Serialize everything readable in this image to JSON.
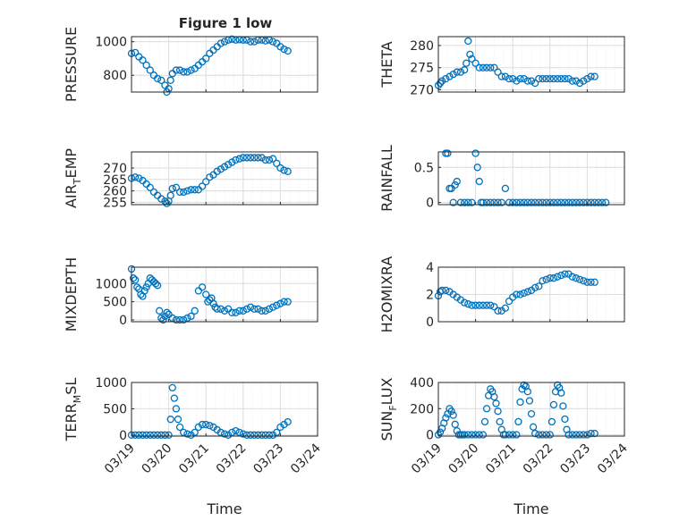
{
  "title": "Figure 1 low",
  "colors": {
    "series": "#0072bd",
    "axis": "#262626",
    "grid": "#dcdcdc"
  },
  "chart_data": [
    {
      "type": "scatter",
      "title": "Figure 1 low",
      "ylabel": "PRESSURE",
      "ylabel_sub": "",
      "ylim": [
        700,
        1030
      ],
      "yticks": [
        800,
        1000
      ],
      "xlim": [
        0,
        5
      ],
      "x": [
        0.0,
        0.1,
        0.2,
        0.3,
        0.4,
        0.5,
        0.6,
        0.7,
        0.8,
        0.9,
        0.95,
        1.0,
        1.05,
        1.1,
        1.2,
        1.3,
        1.4,
        1.5,
        1.6,
        1.7,
        1.8,
        1.9,
        2.0,
        2.1,
        2.2,
        2.3,
        2.4,
        2.5,
        2.6,
        2.7,
        2.8,
        2.9,
        3.0,
        3.1,
        3.2,
        3.3,
        3.4,
        3.5,
        3.6,
        3.7,
        3.8,
        3.9,
        4.0,
        4.1,
        4.2
      ],
      "y": [
        930,
        935,
        910,
        890,
        860,
        830,
        800,
        780,
        770,
        740,
        700,
        720,
        770,
        810,
        830,
        830,
        820,
        820,
        830,
        840,
        860,
        880,
        900,
        930,
        950,
        970,
        990,
        1000,
        1010,
        1015,
        1010,
        1012,
        1010,
        1010,
        1000,
        1000,
        1010,
        1010,
        1005,
        1010,
        1000,
        990,
        970,
        955,
        945
      ]
    },
    {
      "type": "scatter",
      "ylabel": "THETA",
      "ylabel_sub": "",
      "ylim": [
        269.5,
        282
      ],
      "yticks": [
        270,
        275,
        280
      ],
      "xlim": [
        0,
        5
      ],
      "x": [
        0.0,
        0.05,
        0.1,
        0.2,
        0.3,
        0.4,
        0.5,
        0.6,
        0.7,
        0.75,
        0.8,
        0.85,
        0.9,
        1.0,
        1.1,
        1.2,
        1.3,
        1.4,
        1.5,
        1.6,
        1.7,
        1.8,
        1.9,
        2.0,
        2.1,
        2.2,
        2.3,
        2.4,
        2.5,
        2.6,
        2.7,
        2.8,
        2.9,
        3.0,
        3.1,
        3.2,
        3.3,
        3.4,
        3.5,
        3.6,
        3.7,
        3.8,
        3.9,
        4.0,
        4.1,
        4.2
      ],
      "y": [
        271,
        271.5,
        272,
        272.5,
        273,
        273.5,
        274,
        274,
        274.5,
        276,
        281,
        278,
        277,
        276,
        275,
        275,
        275,
        275,
        275,
        274,
        273,
        273,
        272.5,
        272.5,
        272,
        272.5,
        272.5,
        272,
        272,
        271.5,
        272.5,
        272.5,
        272.5,
        272.5,
        272.5,
        272.5,
        272.5,
        272.5,
        272.5,
        272,
        272,
        271.5,
        272,
        272.5,
        273,
        273
      ]
    },
    {
      "type": "scatter",
      "ylabel": "AIR",
      "ylabel_sub": "T",
      "ylabel_suffix": "EMP",
      "ylim": [
        254,
        277
      ],
      "yticks": [
        255,
        260,
        265,
        270
      ],
      "xlim": [
        0,
        5
      ],
      "x": [
        0.0,
        0.1,
        0.2,
        0.3,
        0.4,
        0.5,
        0.6,
        0.7,
        0.8,
        0.9,
        0.95,
        1.0,
        1.05,
        1.1,
        1.2,
        1.3,
        1.4,
        1.5,
        1.6,
        1.7,
        1.8,
        1.9,
        2.0,
        2.1,
        2.2,
        2.3,
        2.4,
        2.5,
        2.6,
        2.7,
        2.8,
        2.9,
        3.0,
        3.1,
        3.2,
        3.3,
        3.4,
        3.5,
        3.6,
        3.7,
        3.8,
        3.9,
        4.0,
        4.1,
        4.2
      ],
      "y": [
        265.5,
        266,
        265.5,
        264.5,
        263,
        261.5,
        259.5,
        258,
        256.5,
        255.5,
        254.5,
        255.5,
        258,
        261,
        261.5,
        259.5,
        259.5,
        260,
        260.5,
        260.5,
        260.5,
        262,
        264,
        266,
        267,
        268.5,
        269.5,
        270.5,
        271.5,
        272.5,
        273.5,
        274,
        274.5,
        274.5,
        274.5,
        274.5,
        274.5,
        274.5,
        273.5,
        273.5,
        274,
        272,
        270,
        269,
        268.5
      ]
    },
    {
      "type": "scatter",
      "ylabel": "RAINFALL",
      "ylabel_sub": "",
      "ylim": [
        -0.03,
        0.72
      ],
      "yticks": [
        0,
        0.5
      ],
      "xlim": [
        0,
        5
      ],
      "x": [
        0.2,
        0.25,
        0.3,
        0.35,
        0.4,
        0.45,
        0.5,
        0.6,
        0.7,
        0.8,
        0.9,
        1.0,
        1.05,
        1.1,
        1.15,
        1.2,
        1.3,
        1.4,
        1.5,
        1.6,
        1.7,
        1.8,
        1.9,
        2.0,
        2.1,
        2.2,
        2.3,
        2.4,
        2.5,
        2.6,
        2.7,
        2.8,
        2.9,
        3.0,
        3.1,
        3.2,
        3.3,
        3.4,
        3.5,
        3.6,
        3.7,
        3.8,
        3.9,
        4.0,
        4.1,
        4.2,
        4.3,
        4.4,
        4.5
      ],
      "y": [
        0.7,
        0.7,
        0.2,
        0.2,
        0.0,
        0.25,
        0.3,
        0.0,
        0.0,
        0.0,
        0.0,
        0.7,
        0.5,
        0.3,
        0.0,
        0.0,
        0.0,
        0.0,
        0.0,
        0.0,
        0.0,
        0.2,
        0.0,
        0.0,
        0.0,
        0.0,
        0.0,
        0.0,
        0.0,
        0.0,
        0.0,
        0.0,
        0.0,
        0.0,
        0.0,
        0.0,
        0.0,
        0.0,
        0.0,
        0.0,
        0.0,
        0.0,
        0.0,
        0.0,
        0.0,
        0.0,
        0.0,
        0.0,
        0.0
      ]
    },
    {
      "type": "scatter",
      "ylabel": "MIXDEPTH",
      "ylabel_sub": "",
      "ylim": [
        -50,
        1450
      ],
      "yticks": [
        0,
        500,
        1000
      ],
      "xlim": [
        0,
        5
      ],
      "x": [
        0.0,
        0.05,
        0.1,
        0.15,
        0.2,
        0.25,
        0.3,
        0.35,
        0.4,
        0.45,
        0.5,
        0.55,
        0.6,
        0.65,
        0.7,
        0.75,
        0.8,
        0.85,
        0.9,
        0.95,
        1.0,
        1.1,
        1.2,
        1.3,
        1.4,
        1.5,
        1.6,
        1.7,
        1.8,
        1.9,
        2.0,
        2.05,
        2.1,
        2.15,
        2.2,
        2.25,
        2.3,
        2.4,
        2.5,
        2.6,
        2.7,
        2.8,
        2.9,
        3.0,
        3.1,
        3.2,
        3.3,
        3.4,
        3.5,
        3.6,
        3.7,
        3.8,
        3.9,
        4.0,
        4.1,
        4.2
      ],
      "y": [
        1400,
        1150,
        1100,
        900,
        850,
        700,
        650,
        800,
        900,
        1000,
        1150,
        1100,
        1050,
        1000,
        950,
        250,
        50,
        0,
        100,
        200,
        150,
        50,
        0,
        0,
        0,
        50,
        100,
        250,
        800,
        900,
        700,
        500,
        550,
        600,
        450,
        350,
        300,
        300,
        250,
        300,
        200,
        200,
        250,
        250,
        300,
        350,
        300,
        300,
        250,
        250,
        300,
        350,
        400,
        450,
        500,
        500
      ]
    },
    {
      "type": "scatter",
      "ylabel": "H2OMIXRA",
      "ylabel_sub": "",
      "ylim": [
        0,
        4
      ],
      "yticks": [
        0,
        2,
        4
      ],
      "xlim": [
        0,
        5
      ],
      "x": [
        0.0,
        0.05,
        0.1,
        0.2,
        0.3,
        0.4,
        0.5,
        0.6,
        0.7,
        0.8,
        0.9,
        1.0,
        1.1,
        1.2,
        1.3,
        1.4,
        1.5,
        1.6,
        1.7,
        1.8,
        1.9,
        2.0,
        2.1,
        2.2,
        2.3,
        2.4,
        2.5,
        2.6,
        2.7,
        2.8,
        2.9,
        3.0,
        3.1,
        3.2,
        3.3,
        3.4,
        3.5,
        3.6,
        3.7,
        3.8,
        3.9,
        4.0,
        4.1,
        4.2
      ],
      "y": [
        1.9,
        2.2,
        2.3,
        2.3,
        2.2,
        2.0,
        1.8,
        1.6,
        1.4,
        1.3,
        1.2,
        1.2,
        1.2,
        1.2,
        1.2,
        1.2,
        1.1,
        0.8,
        0.8,
        1.0,
        1.5,
        1.8,
        2.0,
        2.0,
        2.1,
        2.2,
        2.3,
        2.5,
        2.6,
        3.0,
        3.1,
        3.2,
        3.2,
        3.3,
        3.4,
        3.5,
        3.5,
        3.3,
        3.2,
        3.1,
        3.0,
        2.9,
        2.9,
        2.9
      ]
    },
    {
      "type": "scatter",
      "ylabel": "TERR",
      "ylabel_sub": "M",
      "ylabel_suffix": "SL",
      "ylim": [
        -20,
        1000
      ],
      "yticks": [
        0,
        500,
        1000
      ],
      "xlim": [
        0,
        5
      ],
      "x": [
        0.0,
        0.1,
        0.2,
        0.3,
        0.4,
        0.5,
        0.6,
        0.7,
        0.8,
        0.9,
        1.0,
        1.05,
        1.1,
        1.15,
        1.2,
        1.25,
        1.3,
        1.4,
        1.5,
        1.6,
        1.7,
        1.8,
        1.9,
        2.0,
        2.1,
        2.2,
        2.3,
        2.4,
        2.5,
        2.6,
        2.7,
        2.8,
        2.9,
        3.0,
        3.1,
        3.2,
        3.3,
        3.4,
        3.5,
        3.6,
        3.7,
        3.8,
        3.9,
        4.0,
        4.1,
        4.2
      ],
      "y": [
        0,
        0,
        0,
        0,
        0,
        0,
        0,
        0,
        0,
        0,
        0,
        300,
        900,
        700,
        500,
        300,
        150,
        50,
        20,
        0,
        50,
        150,
        200,
        200,
        180,
        150,
        100,
        50,
        20,
        0,
        50,
        80,
        50,
        20,
        0,
        0,
        0,
        0,
        0,
        0,
        0,
        0,
        50,
        150,
        200,
        250
      ]
    },
    {
      "type": "scatter",
      "ylabel": "SUN",
      "ylabel_sub": "F",
      "ylabel_suffix": "LUX",
      "ylim": [
        -10,
        400
      ],
      "yticks": [
        0,
        200,
        400
      ],
      "xlim": [
        0,
        5
      ],
      "x": [
        0.0,
        0.05,
        0.1,
        0.15,
        0.2,
        0.25,
        0.3,
        0.35,
        0.4,
        0.45,
        0.5,
        0.55,
        0.6,
        0.65,
        0.7,
        0.8,
        0.9,
        1.0,
        1.1,
        1.2,
        1.25,
        1.3,
        1.35,
        1.4,
        1.45,
        1.5,
        1.55,
        1.6,
        1.65,
        1.7,
        1.75,
        1.8,
        1.9,
        2.0,
        2.1,
        2.15,
        2.2,
        2.25,
        2.3,
        2.35,
        2.4,
        2.45,
        2.5,
        2.55,
        2.6,
        2.7,
        2.8,
        2.9,
        3.0,
        3.05,
        3.1,
        3.15,
        3.2,
        3.25,
        3.3,
        3.35,
        3.4,
        3.45,
        3.5,
        3.6,
        3.7,
        3.8,
        3.9,
        4.0,
        4.1,
        4.2
      ],
      "y": [
        0,
        20,
        50,
        90,
        130,
        160,
        200,
        180,
        150,
        80,
        30,
        0,
        0,
        0,
        0,
        0,
        0,
        0,
        0,
        0,
        100,
        200,
        300,
        350,
        330,
        290,
        240,
        180,
        100,
        40,
        0,
        0,
        0,
        0,
        0,
        100,
        250,
        350,
        380,
        370,
        330,
        260,
        160,
        60,
        10,
        0,
        0,
        0,
        0,
        100,
        230,
        330,
        380,
        360,
        320,
        220,
        120,
        40,
        0,
        0,
        0,
        0,
        0,
        0,
        10,
        10
      ]
    }
  ],
  "x_tick_labels": [
    "03/19",
    "03/20",
    "03/21",
    "03/22",
    "03/23",
    "03/24"
  ],
  "xlabel": "Time"
}
